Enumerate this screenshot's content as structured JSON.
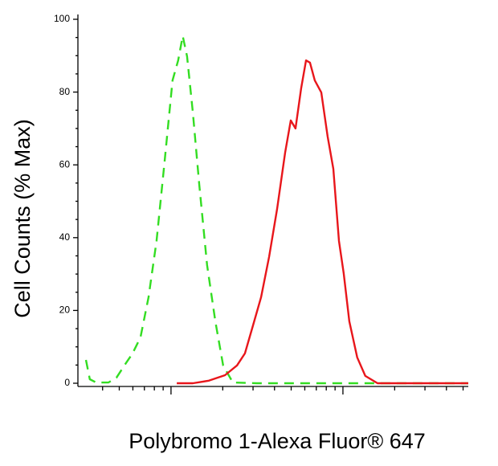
{
  "chart_data": {
    "type": "line",
    "y_label": "Cell Counts (% Max)",
    "x_label": "Polybromo 1-Alexa Fluor® 647",
    "xscale": "log",
    "xlim": [
      3.2,
      536
    ],
    "xticks": [
      10,
      100
    ],
    "ylim": [
      0,
      100
    ],
    "yticks": [
      0,
      20,
      40,
      60,
      80,
      100
    ],
    "series": [
      {
        "color": "#33dd22",
        "dashed": true,
        "x": [
          3.2,
          3.37,
          3.67,
          4.32,
          4.81,
          5.36,
          5.97,
          6.64,
          7.4,
          8.24,
          9.18,
          10.2,
          11.0,
          11.7,
          12.4,
          13.4,
          14.6,
          16.2,
          18.1,
          20.1,
          22.9,
          31.6,
          536
        ],
        "values": [
          6.4,
          1.1,
          0.2,
          0.2,
          1.5,
          4.9,
          8.2,
          12.6,
          23.6,
          39.1,
          61.1,
          83.2,
          88.7,
          95.4,
          89.8,
          74.4,
          54.5,
          32.5,
          17.0,
          4.9,
          0.2,
          0,
          0
        ]
      },
      {
        "color": "#e8161b",
        "dashed": false,
        "x": [
          10.8,
          13.4,
          16.6,
          20.6,
          24.2,
          26.9,
          30.0,
          33.4,
          37.2,
          41.4,
          46.1,
          49.7,
          53.0,
          57.1,
          61.0,
          64.3,
          68.6,
          74.8,
          81.5,
          87.9,
          94.8,
          101,
          109,
          121,
          135,
          159,
          197,
          536
        ],
        "values": [
          0,
          0,
          0.7,
          2.2,
          4.9,
          8.2,
          15.9,
          23.6,
          34.7,
          47.9,
          63.4,
          72.2,
          70.0,
          81.0,
          88.7,
          88.1,
          83.2,
          79.9,
          67.8,
          58.9,
          39.1,
          30.2,
          17.0,
          7.1,
          2.0,
          0,
          0,
          0
        ]
      }
    ]
  }
}
